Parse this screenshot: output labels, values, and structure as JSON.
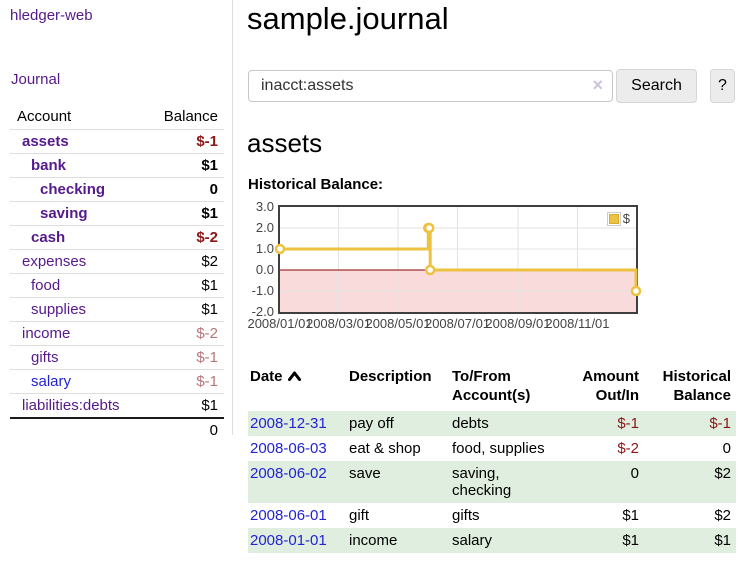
{
  "app": {
    "title": "hledger-web",
    "nav_journal": "Journal"
  },
  "sidebar": {
    "header": {
      "account": "Account",
      "balance": "Balance"
    },
    "accounts": [
      {
        "name": "assets",
        "indent": 0,
        "bold": true,
        "visited": true,
        "balance": "$-1"
      },
      {
        "name": "bank",
        "indent": 1,
        "bold": true,
        "visited": true,
        "balance": "$1"
      },
      {
        "name": "checking",
        "indent": 2,
        "bold": true,
        "visited": true,
        "balance": "0"
      },
      {
        "name": "saving",
        "indent": 2,
        "bold": true,
        "visited": true,
        "balance": "$1"
      },
      {
        "name": "cash",
        "indent": 1,
        "bold": true,
        "visited": true,
        "balance": "$-2"
      },
      {
        "name": "expenses",
        "indent": 0,
        "bold": false,
        "visited": true,
        "balance": "$2"
      },
      {
        "name": "food",
        "indent": 1,
        "bold": false,
        "visited": true,
        "balance": "$1"
      },
      {
        "name": "supplies",
        "indent": 1,
        "bold": false,
        "visited": true,
        "balance": "$1"
      },
      {
        "name": "income",
        "indent": 0,
        "bold": false,
        "visited": true,
        "balance": "$-2"
      },
      {
        "name": "gifts",
        "indent": 1,
        "bold": false,
        "visited": true,
        "balance": "$-1"
      },
      {
        "name": "salary",
        "indent": 1,
        "bold": false,
        "visited": false,
        "balance": "$-1"
      },
      {
        "name": "liabilities:debts",
        "indent": 0,
        "bold": false,
        "visited": true,
        "balance": "$1"
      }
    ],
    "total": "0"
  },
  "main": {
    "title": "sample.journal",
    "search": {
      "value": "inacct:assets",
      "clear_icon": "×",
      "button": "Search",
      "help": "?"
    },
    "heading": "assets",
    "chart_title": "Historical Balance:"
  },
  "chart_data": {
    "type": "line",
    "title": "Historical Balance",
    "steps": true,
    "x_range": [
      "2008/01/01",
      "2008/12/31"
    ],
    "ylim": [
      -2,
      3
    ],
    "y_ticks": [
      3.0,
      2.0,
      1.0,
      0.0,
      -1.0,
      -2.0
    ],
    "x_ticks": [
      "2008/01/01",
      "2008/03/01",
      "2008/05/01",
      "2008/07/01",
      "2008/09/01",
      "2008/11/01"
    ],
    "series": [
      {
        "name": "$",
        "color": "#EDC240",
        "points": [
          [
            "2008/01/01",
            1
          ],
          [
            "2008/06/01",
            2
          ],
          [
            "2008/06/02",
            2
          ],
          [
            "2008/06/03",
            0
          ],
          [
            "2008/12/31",
            -1
          ]
        ]
      }
    ],
    "legend": {
      "label": "$",
      "position": "top-right"
    },
    "grid": true,
    "negative_region_color": "#fadbdb",
    "zero_line_color": "#8b0000"
  },
  "transactions": {
    "headers": {
      "date": "Date",
      "description": "Description",
      "accounts": "To/From Account(s)",
      "amount": "Amount Out/In",
      "balance": "Historical Balance"
    },
    "sort": {
      "column": "date",
      "direction": "asc"
    },
    "rows": [
      {
        "date": "2008-12-31",
        "description": "pay off",
        "accounts": "debts",
        "amount": "$-1",
        "balance": "$-1"
      },
      {
        "date": "2008-06-03",
        "description": "eat & shop",
        "accounts": "food, supplies",
        "amount": "$-2",
        "balance": "0"
      },
      {
        "date": "2008-06-02",
        "description": "save",
        "accounts": "saving, checking",
        "amount": "0",
        "balance": "$2"
      },
      {
        "date": "2008-06-01",
        "description": "gift",
        "accounts": "gifts",
        "amount": "$1",
        "balance": "$2"
      },
      {
        "date": "2008-01-01",
        "description": "income",
        "accounts": "salary",
        "amount": "$1",
        "balance": "$1"
      }
    ]
  }
}
